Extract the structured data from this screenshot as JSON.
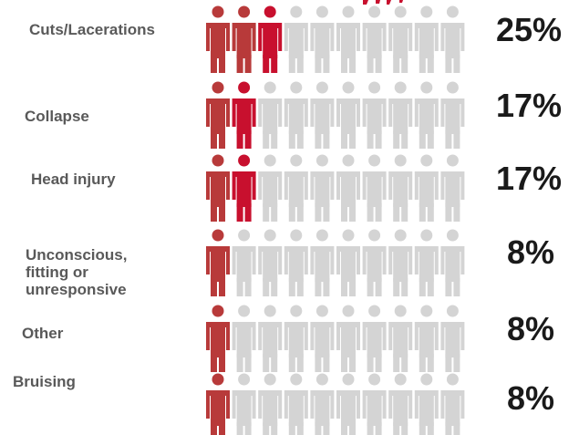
{
  "chart_data": {
    "type": "pictogram",
    "icons_per_row": 10,
    "series": [
      {
        "name": "Cuts/Lacerations",
        "label_lines": [
          "Cuts/Lacerations"
        ],
        "percent_label": "25%",
        "value": 25,
        "filled_icons": 3
      },
      {
        "name": "Collapse",
        "label_lines": [
          "Collapse"
        ],
        "percent_label": "17%",
        "value": 17,
        "filled_icons": 2
      },
      {
        "name": "Head injury",
        "label_lines": [
          "Head injury"
        ],
        "percent_label": "17%",
        "value": 17,
        "filled_icons": 2
      },
      {
        "name": "Unconscious, fitting or unresponsive",
        "label_lines": [
          "Unconscious,",
          "fitting or",
          "unresponsive"
        ],
        "percent_label": "8%",
        "value": 8,
        "filled_icons": 1
      },
      {
        "name": "Other",
        "label_lines": [
          "Other"
        ],
        "percent_label": "8%",
        "value": 8,
        "filled_icons": 1
      },
      {
        "name": "Bruising",
        "label_lines": [
          "Bruising"
        ],
        "percent_label": "8%",
        "value": 8,
        "filled_icons": 1
      }
    ],
    "colors": {
      "filled": "#b83a3a",
      "filled_accent": "#c8102e",
      "empty": "#d4d4d4",
      "label": "#595959",
      "percent": "#1a1a1a"
    }
  }
}
